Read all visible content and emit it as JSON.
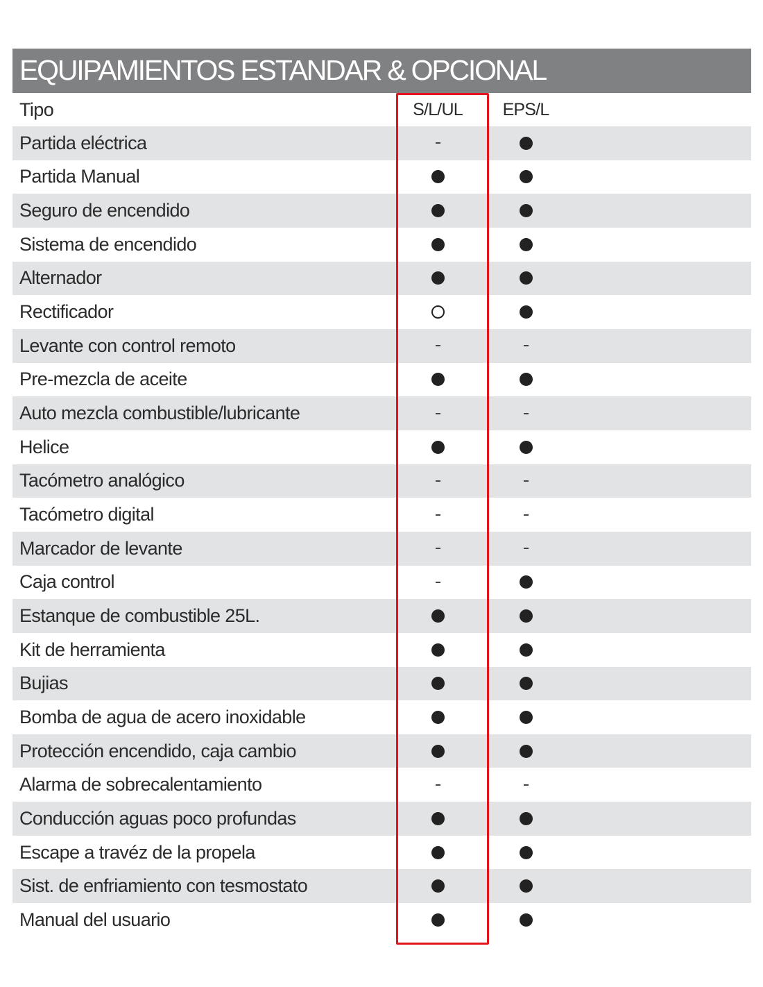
{
  "title": "EQUIPAMIENTOS ESTANDAR & OPCIONAL",
  "header": {
    "label": "Tipo",
    "columns": [
      "S/L/UL",
      "EPS/L"
    ]
  },
  "legend_symbols": {
    "dot": "standard (filled circle)",
    "circle": "optional (hollow circle)",
    "dash": "not available"
  },
  "colors": {
    "title_bar": "#808183",
    "row_shade": "#e2e3e5",
    "highlight": "#e3141b"
  },
  "highlighted_column": "S/L/UL",
  "rows": [
    {
      "label": "Partida eléctrica",
      "values": [
        "dash",
        "dot"
      ]
    },
    {
      "label": "Partida Manual",
      "values": [
        "dot",
        "dot"
      ]
    },
    {
      "label": "Seguro de encendido",
      "values": [
        "dot",
        "dot"
      ]
    },
    {
      "label": "Sistema de encendido",
      "values": [
        "dot",
        "dot"
      ]
    },
    {
      "label": "Alternador",
      "values": [
        "dot",
        "dot"
      ]
    },
    {
      "label": "Rectificador",
      "values": [
        "circle",
        "dot"
      ]
    },
    {
      "label": "Levante con control remoto",
      "values": [
        "dash",
        "dash"
      ]
    },
    {
      "label": "Pre-mezcla de aceite",
      "values": [
        "dot",
        "dot"
      ]
    },
    {
      "label": "Auto mezcla combustible/lubricante",
      "values": [
        "dash",
        "dash"
      ]
    },
    {
      "label": "Helice",
      "values": [
        "dot",
        "dot"
      ]
    },
    {
      "label": "Tacómetro analógico",
      "values": [
        "dash",
        "dash"
      ]
    },
    {
      "label": "Tacómetro digital",
      "values": [
        "dash",
        "dash"
      ]
    },
    {
      "label": "Marcador de levante",
      "values": [
        "dash",
        "dash"
      ]
    },
    {
      "label": "Caja control",
      "values": [
        "dash",
        "dot"
      ]
    },
    {
      "label": "Estanque de combustible 25L.",
      "values": [
        "dot",
        "dot"
      ]
    },
    {
      "label": "Kit de herramienta",
      "values": [
        "dot",
        "dot"
      ]
    },
    {
      "label": "Bujias",
      "values": [
        "dot",
        "dot"
      ]
    },
    {
      "label": "Bomba de agua de acero inoxidable",
      "values": [
        "dot",
        "dot"
      ]
    },
    {
      "label": "Protección encendido, caja cambio",
      "values": [
        "dot",
        "dot"
      ]
    },
    {
      "label": "Alarma de sobrecalentamiento",
      "values": [
        "dash",
        "dash"
      ]
    },
    {
      "label": "Conducción aguas poco profundas",
      "values": [
        "dot",
        "dot"
      ]
    },
    {
      "label": "Escape a travéz de la propela",
      "values": [
        "dot",
        "dot"
      ]
    },
    {
      "label": "Sist. de enfriamiento con tesmostato",
      "values": [
        "dot",
        "dot"
      ]
    },
    {
      "label": "Manual del usuario",
      "values": [
        "dot",
        "dot"
      ]
    }
  ]
}
